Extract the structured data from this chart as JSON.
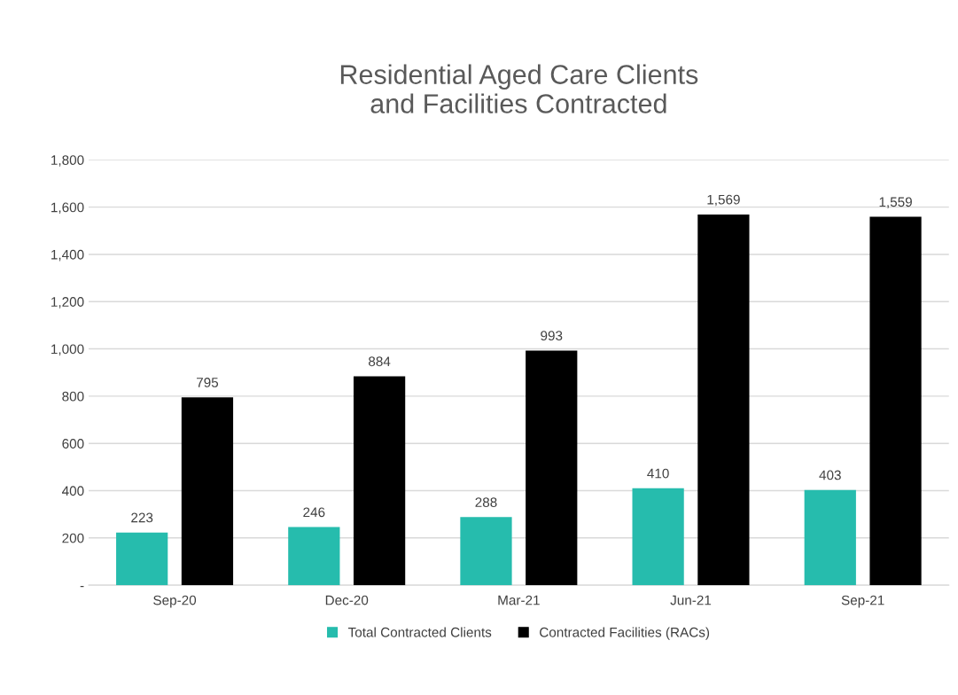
{
  "chart_data": {
    "type": "bar",
    "title": "Residential Aged Care Clients\nand Facilities Contracted",
    "categories": [
      "Sep-20",
      "Dec-20",
      "Mar-21",
      "Jun-21",
      "Sep-21"
    ],
    "series": [
      {
        "name": "Total Contracted Clients",
        "color": "#26bcad",
        "values": [
          223,
          246,
          288,
          410,
          403
        ],
        "value_labels": [
          "223",
          "246",
          "288",
          "410",
          "403"
        ]
      },
      {
        "name": "Contracted Facilities (RACs)",
        "color": "#000000",
        "values": [
          795,
          884,
          993,
          1569,
          1559
        ],
        "value_labels": [
          "795",
          "884",
          "993",
          "1,569",
          "1,559"
        ]
      }
    ],
    "ylim": [
      0,
      1800
    ],
    "yticks": [
      {
        "value": 0,
        "label": "-"
      },
      200,
      400,
      600,
      800,
      {
        "value": 1000,
        "label": "1,000"
      },
      {
        "value": 1200,
        "label": "1,200"
      },
      {
        "value": 1400,
        "label": "1,400"
      },
      {
        "value": 1600,
        "label": "1,600"
      },
      {
        "value": 1800,
        "label": "1,800"
      }
    ],
    "grid": "y",
    "legend": "bottom"
  }
}
